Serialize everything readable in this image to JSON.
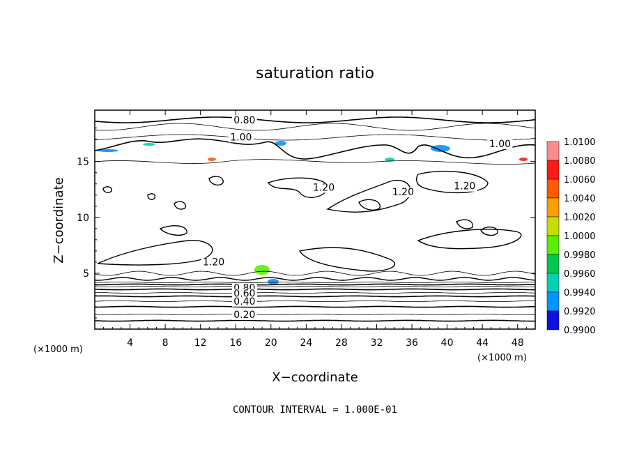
{
  "chart_data": {
    "type": "contour",
    "title": "saturation ratio",
    "xlabel": "X−coordinate",
    "ylabel": "Z−coordinate",
    "x_unit_left": "(×1000 m)",
    "x_unit_right": "(×1000 m)",
    "xlim": [
      0,
      50
    ],
    "ylim": [
      0,
      19.6
    ],
    "x_ticks": [
      4,
      8,
      12,
      16,
      20,
      24,
      28,
      32,
      36,
      40,
      44,
      48
    ],
    "y_ticks": [
      5,
      10,
      15
    ],
    "contour_labels": [
      {
        "text": "0.80",
        "x": 17.0,
        "y": 18.4
      },
      {
        "text": "1.00",
        "x": 16.6,
        "y": 16.9
      },
      {
        "text": "1.00",
        "x": 46.0,
        "y": 16.3
      },
      {
        "text": "1.20",
        "x": 26.0,
        "y": 12.4
      },
      {
        "text": "1.20",
        "x": 35.0,
        "y": 12.0
      },
      {
        "text": "1.20",
        "x": 42.0,
        "y": 12.5
      },
      {
        "text": "1.20",
        "x": 13.5,
        "y": 5.7
      },
      {
        "text": "0.80",
        "x": 17.0,
        "y": 3.4
      },
      {
        "text": "0.60",
        "x": 17.0,
        "y": 2.9
      },
      {
        "text": "0.40",
        "x": 17.0,
        "y": 2.2
      },
      {
        "text": "0.20",
        "x": 17.0,
        "y": 1.0
      }
    ],
    "colorbar": {
      "levels": [
        "1.0100",
        "1.0080",
        "1.0060",
        "1.0040",
        "1.0020",
        "1.0000",
        "0.9980",
        "0.9960",
        "0.9940",
        "0.9920",
        "0.9900"
      ],
      "colors": [
        "#ff8c8c",
        "#ff1a1a",
        "#ff5a00",
        "#ffa000",
        "#c8dc00",
        "#5aee00",
        "#00c850",
        "#00d2b4",
        "#0096ff",
        "#1010e0",
        "#7a00c8"
      ]
    },
    "contour_interval_text": "CONTOUR INTERVAL =  1.000E-01"
  }
}
